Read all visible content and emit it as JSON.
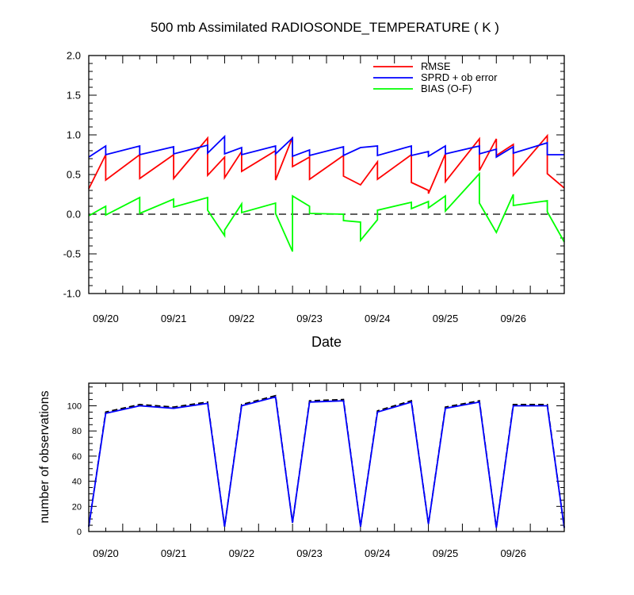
{
  "chart_data": [
    {
      "type": "line",
      "title": "500 mb Assimilated RADIOSONDE_TEMPERATURE ( K )",
      "xlabel": "Date",
      "ylabel": "",
      "x_tick_labels": [
        "09/20",
        "09/21",
        "09/22",
        "09/23",
        "09/24",
        "09/25",
        "09/26"
      ],
      "y_ticks": [
        "2.0",
        "1.5",
        "1.0",
        "0.5",
        "0.0",
        "-0.5",
        "-1.0"
      ],
      "ylim": [
        -1.0,
        2.0
      ],
      "xlim": [
        0,
        7.0
      ],
      "grid": false,
      "zero_line": "dashed",
      "legend": "top-right",
      "series": [
        {
          "name": "RMSE",
          "color": "#ff0000",
          "points": [
            [
              0.0,
              0.32
            ],
            [
              0.25,
              0.75
            ],
            [
              0.25,
              0.43
            ],
            [
              0.75,
              0.75
            ],
            [
              0.75,
              0.45
            ],
            [
              1.25,
              0.75
            ],
            [
              1.25,
              0.45
            ],
            [
              1.75,
              0.96
            ],
            [
              1.75,
              0.49
            ],
            [
              2.0,
              0.72
            ],
            [
              2.0,
              0.46
            ],
            [
              2.25,
              0.79
            ],
            [
              2.25,
              0.54
            ],
            [
              2.75,
              0.8
            ],
            [
              2.75,
              0.43
            ],
            [
              3.0,
              0.97
            ],
            [
              3.0,
              0.6
            ],
            [
              3.25,
              0.72
            ],
            [
              3.25,
              0.44
            ],
            [
              3.75,
              0.74
            ],
            [
              3.75,
              0.48
            ],
            [
              4.0,
              0.37
            ],
            [
              4.25,
              0.66
            ],
            [
              4.25,
              0.44
            ],
            [
              4.75,
              0.75
            ],
            [
              4.75,
              0.4
            ],
            [
              5.0,
              0.3
            ],
            [
              5.0,
              0.26
            ],
            [
              5.25,
              0.76
            ],
            [
              5.25,
              0.41
            ],
            [
              5.75,
              0.95
            ],
            [
              5.75,
              0.55
            ],
            [
              6.0,
              0.95
            ],
            [
              6.0,
              0.74
            ],
            [
              6.25,
              0.88
            ],
            [
              6.25,
              0.49
            ],
            [
              6.75,
              0.99
            ],
            [
              6.75,
              0.51
            ],
            [
              7.0,
              0.33
            ]
          ]
        },
        {
          "name": "SPRD + ob error",
          "color": "#0000ff",
          "points": [
            [
              0.0,
              0.72
            ],
            [
              0.25,
              0.86
            ],
            [
              0.25,
              0.75
            ],
            [
              0.75,
              0.86
            ],
            [
              0.75,
              0.75
            ],
            [
              1.25,
              0.85
            ],
            [
              1.25,
              0.76
            ],
            [
              1.75,
              0.87
            ],
            [
              1.75,
              0.77
            ],
            [
              2.0,
              0.98
            ],
            [
              2.0,
              0.76
            ],
            [
              2.25,
              0.84
            ],
            [
              2.25,
              0.75
            ],
            [
              2.75,
              0.86
            ],
            [
              2.75,
              0.76
            ],
            [
              3.0,
              0.96
            ],
            [
              3.0,
              0.73
            ],
            [
              3.25,
              0.81
            ],
            [
              3.25,
              0.74
            ],
            [
              3.75,
              0.85
            ],
            [
              3.75,
              0.74
            ],
            [
              4.0,
              0.84
            ],
            [
              4.25,
              0.86
            ],
            [
              4.25,
              0.74
            ],
            [
              4.75,
              0.86
            ],
            [
              4.75,
              0.74
            ],
            [
              5.0,
              0.79
            ],
            [
              5.0,
              0.73
            ],
            [
              5.25,
              0.86
            ],
            [
              5.25,
              0.76
            ],
            [
              5.75,
              0.86
            ],
            [
              5.75,
              0.76
            ],
            [
              6.0,
              0.82
            ],
            [
              6.0,
              0.72
            ],
            [
              6.25,
              0.85
            ],
            [
              6.25,
              0.77
            ],
            [
              6.75,
              0.9
            ],
            [
              6.75,
              0.75
            ],
            [
              7.0,
              0.75
            ]
          ]
        },
        {
          "name": "BIAS (O-F)",
          "color": "#00ff00",
          "points": [
            [
              0.0,
              -0.02
            ],
            [
              0.25,
              0.1
            ],
            [
              0.25,
              -0.01
            ],
            [
              0.75,
              0.21
            ],
            [
              0.75,
              0.01
            ],
            [
              1.25,
              0.19
            ],
            [
              1.25,
              0.09
            ],
            [
              1.75,
              0.21
            ],
            [
              1.75,
              0.05
            ],
            [
              2.0,
              -0.27
            ],
            [
              2.0,
              -0.2
            ],
            [
              2.25,
              0.13
            ],
            [
              2.25,
              0.02
            ],
            [
              2.75,
              0.14
            ],
            [
              2.75,
              0.01
            ],
            [
              3.0,
              -0.47
            ],
            [
              3.0,
              0.23
            ],
            [
              3.25,
              0.1
            ],
            [
              3.25,
              0.01
            ],
            [
              3.75,
              0.0
            ],
            [
              3.75,
              -0.08
            ],
            [
              4.0,
              -0.1
            ],
            [
              4.0,
              -0.33
            ],
            [
              4.25,
              -0.07
            ],
            [
              4.25,
              0.05
            ],
            [
              4.75,
              0.15
            ],
            [
              4.75,
              0.07
            ],
            [
              5.0,
              0.16
            ],
            [
              5.0,
              0.08
            ],
            [
              5.25,
              0.23
            ],
            [
              5.25,
              0.04
            ],
            [
              5.75,
              0.51
            ],
            [
              5.75,
              0.14
            ],
            [
              6.0,
              -0.23
            ],
            [
              6.25,
              0.25
            ],
            [
              6.25,
              0.11
            ],
            [
              6.75,
              0.17
            ],
            [
              6.75,
              0.03
            ],
            [
              7.0,
              -0.35
            ]
          ]
        }
      ]
    },
    {
      "type": "line",
      "title": "",
      "xlabel": "",
      "ylabel": "number of observations",
      "x_tick_labels": [
        "09/20",
        "09/21",
        "09/22",
        "09/23",
        "09/24",
        "09/25",
        "09/26"
      ],
      "y_ticks": [
        "100",
        "80",
        "60",
        "40",
        "20",
        "0"
      ],
      "ylim": [
        0,
        118
      ],
      "xlim": [
        0,
        7.0
      ],
      "grid": false,
      "series": [
        {
          "color": "#000000",
          "dash": "dashed",
          "points": [
            [
              0.0,
              4
            ],
            [
              0.25,
              95
            ],
            [
              0.75,
              101
            ],
            [
              1.25,
              99
            ],
            [
              1.75,
              103
            ],
            [
              2.0,
              4
            ],
            [
              2.25,
              101
            ],
            [
              2.75,
              108
            ],
            [
              3.0,
              7
            ],
            [
              3.25,
              104
            ],
            [
              3.75,
              105
            ],
            [
              4.0,
              4
            ],
            [
              4.25,
              96
            ],
            [
              4.75,
              104
            ],
            [
              5.0,
              6
            ],
            [
              5.25,
              99
            ],
            [
              5.75,
              104
            ],
            [
              6.0,
              3
            ],
            [
              6.25,
              101
            ],
            [
              6.75,
              101
            ],
            [
              7.0,
              3
            ]
          ]
        },
        {
          "color": "#0000ff",
          "dash": "solid",
          "points": [
            [
              0.0,
              4
            ],
            [
              0.25,
              94
            ],
            [
              0.75,
              100
            ],
            [
              1.25,
              98
            ],
            [
              1.75,
              102
            ],
            [
              2.0,
              4
            ],
            [
              2.25,
              100
            ],
            [
              2.75,
              107
            ],
            [
              3.0,
              7
            ],
            [
              3.25,
              103
            ],
            [
              3.75,
              104
            ],
            [
              4.0,
              4
            ],
            [
              4.25,
              95
            ],
            [
              4.75,
              103
            ],
            [
              5.0,
              6
            ],
            [
              5.25,
              98
            ],
            [
              5.75,
              103
            ],
            [
              6.0,
              3
            ],
            [
              6.25,
              100
            ],
            [
              6.75,
              100
            ],
            [
              7.0,
              3
            ]
          ]
        }
      ]
    }
  ]
}
